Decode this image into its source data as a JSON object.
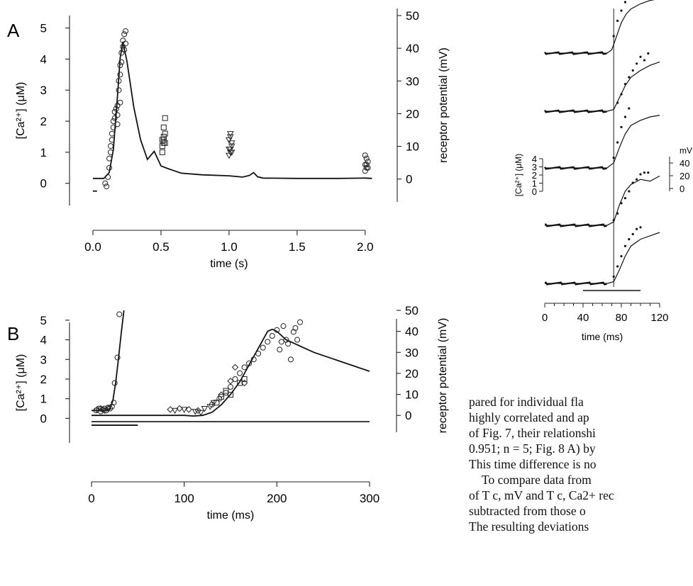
{
  "panels": [
    {
      "panel_label": "A",
      "chart_data": {
        "type": "line",
        "xlabel": "time (s)",
        "ylabel": "[Ca²⁺] (μM)",
        "y2label": "receptor potential (mV)",
        "xlim": [
          0,
          2.1
        ],
        "ylim": [
          -0.6,
          5.4
        ],
        "y2lim": [
          -7,
          50
        ],
        "xticks": [
          "0.0",
          "0.5",
          "1.0",
          "1.5",
          "2.0"
        ],
        "yticks": [
          "0",
          "1",
          "2",
          "3",
          "4",
          "5"
        ],
        "y2ticks": [
          "0",
          "10",
          "20",
          "30",
          "40",
          "50"
        ],
        "series": [
          {
            "kind": "line",
            "axis": "right",
            "x": [
              0.0,
              0.08,
              0.12,
              0.15,
              0.18,
              0.2,
              0.22,
              0.25,
              0.3,
              0.35,
              0.4,
              0.45,
              0.5,
              0.55,
              0.6,
              0.65,
              0.8,
              1.0,
              1.1,
              1.15,
              1.18,
              1.21,
              1.25,
              1.5,
              1.8,
              2.0,
              2.05
            ],
            "y": [
              0.2,
              0.2,
              2,
              9,
              25,
              37,
              42,
              36,
              22,
              12,
              6,
              8.5,
              4,
              3.2,
              2.5,
              1.8,
              1.3,
              1.0,
              0.6,
              1.1,
              2.0,
              0.7,
              0.3,
              0.2,
              0.2,
              0.3,
              0.2
            ]
          },
          {
            "kind": "points",
            "marker": "circle",
            "axis": "left",
            "x": [
              0.09,
              0.1,
              0.11,
              0.12,
              0.12,
              0.13,
              0.13,
              0.14,
              0.14,
              0.15,
              0.15,
              0.16,
              0.16,
              0.17,
              0.18,
              0.18,
              0.19,
              0.19,
              0.2,
              0.2,
              0.21,
              0.21,
              0.22,
              0.22,
              0.23,
              0.23,
              0.24,
              0.24,
              0.2,
              0.18
            ],
            "y": [
              0.0,
              -0.1,
              0.2,
              0.5,
              0.8,
              1.0,
              1.2,
              1.4,
              1.6,
              1.8,
              2.0,
              2.1,
              2.3,
              2.4,
              2.5,
              2.2,
              3.0,
              3.3,
              3.8,
              3.5,
              4.2,
              3.9,
              4.6,
              4.4,
              4.8,
              4.3,
              4.9,
              4.5,
              2.6,
              1.9
            ]
          },
          {
            "kind": "points",
            "marker": "square",
            "axis": "left",
            "x": [
              0.51,
              0.51,
              0.52,
              0.52,
              0.52,
              0.53,
              0.53,
              0.51,
              0.52,
              0.53
            ],
            "y": [
              1.0,
              1.2,
              1.3,
              1.4,
              1.5,
              1.3,
              1.6,
              1.4,
              1.8,
              2.1
            ]
          },
          {
            "kind": "points",
            "marker": "triangle",
            "axis": "left",
            "x": [
              1.0,
              1.01,
              1.01,
              1.02,
              1.02,
              1.0,
              1.01,
              1.02,
              1.01,
              1.0
            ],
            "y": [
              0.9,
              1.0,
              1.1,
              1.2,
              1.3,
              1.4,
              1.5,
              1.0,
              1.6,
              1.1
            ]
          },
          {
            "kind": "points",
            "marker": "circle",
            "axis": "left",
            "x": [
              2.0,
              2.01,
              2.0,
              2.02,
              2.01,
              2.0,
              2.02,
              2.01
            ],
            "y": [
              0.4,
              0.5,
              0.6,
              0.7,
              0.8,
              0.9,
              0.5,
              0.6
            ]
          }
        ],
        "stimulus_bar": {
          "x": [
            0.0,
            0.03
          ],
          "y": -0.25
        }
      }
    },
    {
      "panel_label": "B",
      "chart_data": {
        "type": "line",
        "xlabel": "time (ms)",
        "ylabel": "[Ca²⁺] (μM)",
        "y2label": "receptor potential (mV)",
        "xlim": [
          0,
          300
        ],
        "ylim": [
          -0.6,
          5.5
        ],
        "y2lim": [
          -7,
          50
        ],
        "xticks": [
          "0",
          "100",
          "200",
          "300"
        ],
        "yticks": [
          "0",
          "1",
          "2",
          "3",
          "4",
          "5"
        ],
        "y2ticks": [
          "0",
          "10",
          "20",
          "30",
          "40",
          "50"
        ],
        "series": [
          {
            "kind": "line",
            "axis": "left",
            "x": [
              0,
              15,
              20,
              23,
              26,
              29,
              32,
              35
            ],
            "y": [
              0.4,
              0.4,
              0.5,
              0.9,
              1.8,
              3.0,
              4.3,
              5.5
            ]
          },
          {
            "kind": "line",
            "axis": "right",
            "x": [
              0,
              100,
              110,
              120,
              130,
              140,
              150,
              160,
              170,
              180,
              190,
              195,
              200,
              210,
              220,
              240,
              260,
              280,
              300
            ],
            "y": [
              0,
              0,
              -0.3,
              0,
              1.5,
              5,
              10,
              16,
              24,
              32,
              40,
              41,
              40,
              36,
              34,
              30,
              27,
              24,
              21
            ]
          },
          {
            "kind": "points",
            "marker": "circle",
            "axis": "left",
            "x": [
              5,
              8,
              10,
              12,
              14,
              16,
              18,
              20,
              22,
              24,
              25,
              28,
              30
            ],
            "y": [
              0.4,
              0.5,
              0.35,
              0.45,
              0.5,
              0.4,
              0.55,
              0.5,
              0.6,
              0.8,
              1.8,
              3.1,
              5.3
            ]
          },
          {
            "kind": "points",
            "marker": "diamond",
            "axis": "left",
            "x": [
              6,
              10,
              14,
              18,
              85,
              95,
              105,
              115,
              140,
              150,
              155,
              165
            ],
            "y": [
              0.45,
              0.5,
              0.4,
              0.5,
              0.45,
              0.5,
              0.45,
              0.4,
              1.2,
              1.9,
              2.6,
              1.8
            ]
          },
          {
            "kind": "points",
            "marker": "triangle",
            "axis": "left",
            "x": [
              90,
              100,
              112,
              118,
              122,
              128,
              132
            ],
            "y": [
              0.4,
              0.45,
              0.35,
              0.3,
              0.5,
              0.6,
              0.8
            ]
          },
          {
            "kind": "points",
            "marker": "square",
            "axis": "left",
            "x": [
              135,
              140,
              145,
              150,
              160,
              165
            ],
            "y": [
              0.8,
              1.1,
              1.4,
              1.2,
              1.8,
              2.0
            ]
          },
          {
            "kind": "points",
            "marker": "circle",
            "axis": "left",
            "x": [
              130,
              138,
              145,
              150,
              155,
              160,
              165,
              170,
              175,
              180,
              185,
              190,
              195,
              200,
              203,
              205,
              207,
              210,
              212,
              215,
              218,
              220,
              222,
              225
            ],
            "y": [
              0.7,
              1.0,
              1.3,
              1.6,
              2.0,
              2.3,
              2.6,
              2.8,
              3.0,
              3.3,
              3.6,
              3.9,
              4.2,
              4.5,
              3.5,
              3.9,
              4.7,
              4.0,
              3.8,
              3.0,
              4.4,
              4.6,
              4.0,
              4.9
            ]
          }
        ],
        "baseline_line": {
          "x": [
            0,
            300
          ],
          "y": -0.17
        },
        "stimulus_bar": {
          "x": [
            0,
            50
          ],
          "y": -0.35
        }
      }
    },
    {
      "panel_label": "",
      "chart_data": {
        "type": "line",
        "xlabel": "time (ms)",
        "ylabel": "[Ca²⁺] (μM)",
        "y2label": "mV",
        "xlim": [
          0,
          120
        ],
        "xticks": [
          "0",
          "40",
          "80",
          "120"
        ],
        "yticks": [
          "0",
          "1",
          "2",
          "3",
          "4"
        ],
        "y2ticks": [
          "0",
          "20",
          "40"
        ],
        "vertical_marker_x": 72,
        "traces": [
          {
            "line_x": [
              0,
              40,
              65,
              70,
              75,
              80,
              85,
              90,
              100,
              110,
              120
            ],
            "line_y": [
              0,
              0,
              0,
              0.2,
              1.0,
              1.8,
              2.3,
              2.6,
              2.9,
              3.1,
              3.2
            ],
            "dots_x": [
              72,
              76,
              80,
              84,
              88
            ],
            "dots_y": [
              1.0,
              1.9,
              2.5,
              3.0,
              3.3
            ]
          },
          {
            "line_x": [
              0,
              40,
              65,
              72,
              78,
              84,
              90,
              100,
              110,
              120
            ],
            "line_y": [
              0,
              0,
              0,
              0.1,
              0.8,
              1.5,
              2.0,
              2.4,
              2.7,
              2.9
            ],
            "dots_x": [
              76,
              80,
              84,
              88,
              92,
              96,
              100,
              104,
              108
            ],
            "dots_y": [
              0.5,
              1.0,
              1.6,
              2.0,
              2.4,
              2.8,
              3.2,
              3.0,
              3.4
            ]
          },
          {
            "line_x": [
              0,
              40,
              65,
              72,
              78,
              84,
              90,
              100,
              110,
              120
            ],
            "line_y": [
              0,
              0,
              0,
              0.3,
              1.2,
              2.0,
              2.5,
              2.8,
              3.0,
              3.1
            ],
            "dots_x": [
              72,
              76,
              80,
              84,
              88
            ],
            "dots_y": [
              0.6,
              1.5,
              2.4,
              3.0,
              3.5
            ]
          },
          {
            "line_x": [
              0,
              40,
              65,
              72,
              78,
              84,
              90,
              100,
              110,
              120
            ],
            "line_y": [
              0,
              0,
              0,
              0.2,
              1.2,
              2.0,
              2.4,
              2.7,
              2.6,
              2.9
            ],
            "dots_x": [
              72,
              76,
              80,
              84,
              88,
              92,
              96,
              100,
              104,
              108
            ],
            "dots_y": [
              0.3,
              0.7,
              1.3,
              1.6,
              2.0,
              2.5,
              2.7,
              3.0,
              3.1,
              3.1
            ]
          },
          {
            "line_x": [
              0,
              40,
              65,
              72,
              78,
              84,
              90,
              100,
              110,
              120
            ],
            "line_y": [
              0,
              0,
              0,
              0.1,
              0.8,
              1.6,
              2.2,
              2.6,
              2.8,
              3.0
            ],
            "dots_x": [
              72,
              76,
              80,
              84,
              88,
              92,
              96,
              100
            ],
            "dots_y": [
              0.4,
              1.0,
              1.6,
              2.2,
              2.6,
              2.9,
              3.2,
              3.3
            ]
          }
        ],
        "stimulus_bar": {
          "x": [
            40,
            100
          ]
        }
      }
    }
  ],
  "text_lines": [
    "pared for individual fla",
    "highly correlated and ap",
    "of Fig. 7, their relationshi",
    "0.951; n = 5; Fig. 8 A) by",
    "This time difference is no",
    "To compare data from",
    "of T c, mV and T c, Ca2+ rec",
    "subtracted from those o",
    "The resulting deviations"
  ]
}
